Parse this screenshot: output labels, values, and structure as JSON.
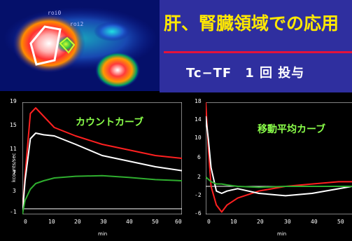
{
  "header": {
    "title": "肝、腎臓領域での応用",
    "subtitle": "Tc−TF　1 回 投与"
  },
  "scan": {
    "roi_labels": [
      "roi0",
      "roi2"
    ]
  },
  "charts": [
    {
      "title": "カウントカーブ",
      "ylabel": "kcounts/sec",
      "xlabel": "min",
      "yticks": [
        "19",
        "15",
        "11",
        "7",
        "3",
        "-1"
      ],
      "xticks": [
        "0",
        "10",
        "20",
        "30",
        "40",
        "50",
        "60"
      ]
    },
    {
      "title": "移動平均カーブ",
      "ylabel": "",
      "xlabel": "min",
      "yticks": [
        "18",
        "14",
        "10",
        "6",
        "2",
        "-2",
        "-6"
      ],
      "xticks": [
        "0",
        "10",
        "20",
        "30",
        "40",
        "50"
      ]
    }
  ],
  "colors": {
    "title_yellow": "#ffe800",
    "accent_red": "#e3133b",
    "curve_red": "#ff2020",
    "curve_white": "#ffffff",
    "curve_green": "#2fae2f",
    "chart_label_green": "#8aff4a"
  },
  "chart_data": [
    {
      "type": "line",
      "x": [
        0,
        1,
        3,
        5,
        8,
        12,
        20,
        30,
        40,
        50,
        60
      ],
      "series": [
        {
          "values": [
            -1,
            6,
            17,
            18,
            16.5,
            14.5,
            13,
            11.5,
            10.5,
            9.5,
            9
          ]
        },
        {
          "values": [
            -1,
            5,
            12.5,
            13.5,
            13.2,
            13,
            11.5,
            9.5,
            8.5,
            7.5,
            6.8
          ]
        },
        {
          "values": [
            -1,
            1.5,
            3.5,
            4.5,
            5,
            5.5,
            5.8,
            5.9,
            5.6,
            5.2,
            5
          ]
        }
      ],
      "xlim": [
        0,
        60
      ],
      "ylim": [
        -1,
        19
      ],
      "xlabel": "min",
      "ylabel": "kcounts/sec",
      "title": "カウントカーブ"
    },
    {
      "type": "line",
      "x": [
        0,
        1,
        2,
        4,
        6,
        8,
        12,
        20,
        30,
        40,
        50,
        55
      ],
      "series": [
        {
          "values": [
            18,
            8,
            0,
            -4,
            -5.5,
            -4,
            -2.5,
            -1,
            0,
            0.5,
            1,
            1
          ]
        },
        {
          "values": [
            15,
            10,
            4,
            -1,
            -1.5,
            -1,
            -0.5,
            -1.5,
            -2,
            -1.5,
            -0.5,
            0
          ]
        },
        {
          "values": [
            2,
            1.5,
            1,
            0.5,
            0.5,
            0.3,
            0,
            -0.2,
            0,
            0,
            0,
            0
          ]
        }
      ],
      "xlim": [
        0,
        55
      ],
      "ylim": [
        -6,
        18
      ],
      "xlabel": "min",
      "title": "移動平均カーブ"
    }
  ]
}
